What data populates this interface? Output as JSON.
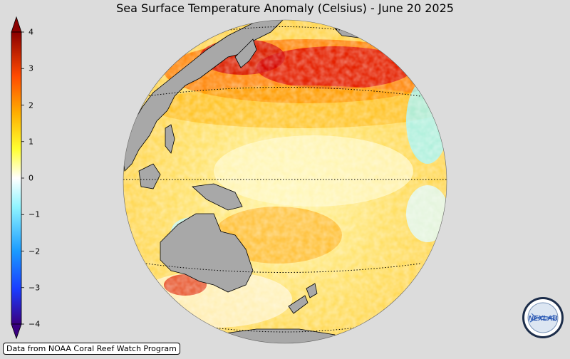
{
  "title": "Sea Surface Temperature Anomaly (Celsius) - June 20 2025",
  "colorbar": {
    "ticks": [
      "4",
      "3",
      "2",
      "1",
      "0",
      "−1",
      "−2",
      "−3",
      "−4"
    ],
    "colors": [
      "#5a0090",
      "#1a3cff",
      "#1a9bff",
      "#7ff0ff",
      "#ffffff",
      "#ffff40",
      "#ffb000",
      "#ff5000",
      "#d00000",
      "#700000"
    ]
  },
  "credit": "Data from NOAA Coral Reef Watch Program",
  "logo": {
    "text": "NEXLAB"
  },
  "map": {
    "land_color": "#a8a8a8",
    "ocean_base": "#ffe47a"
  }
}
